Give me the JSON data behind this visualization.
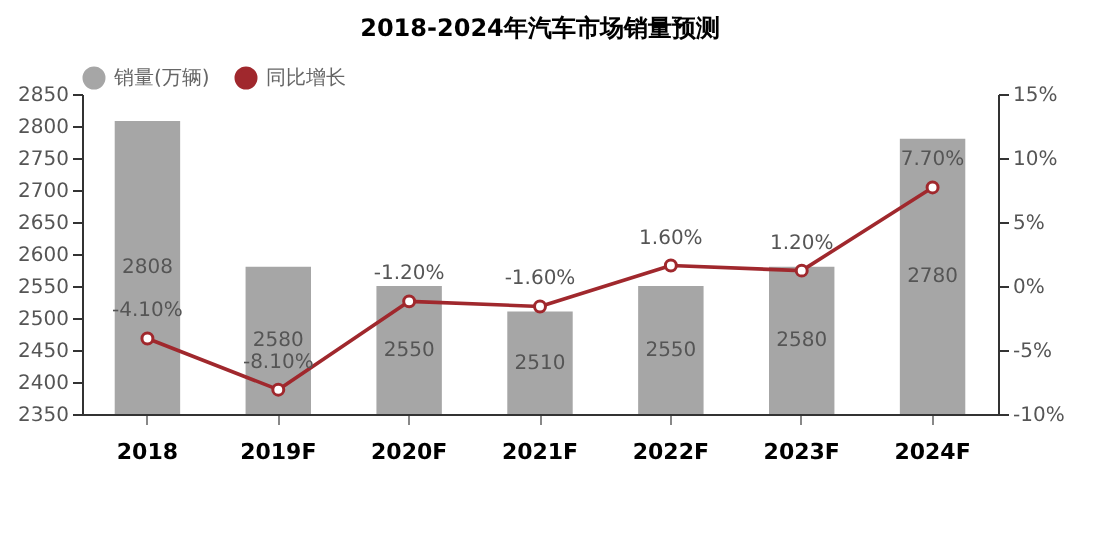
{
  "chart_data": {
    "type": "bar",
    "title": "2018-2024年汽车市场销量预测",
    "categories": [
      "2018",
      "2019F",
      "2020F",
      "2021F",
      "2022F",
      "2023F",
      "2024F"
    ],
    "series": [
      {
        "name": "销量(万辆)",
        "color": "#a6a6a6",
        "values": [
          2808,
          2580,
          2550,
          2510,
          2550,
          2580,
          2780
        ],
        "value_labels": [
          "2808",
          "2580",
          "2550",
          "2510",
          "2550",
          "2580",
          "2780"
        ]
      },
      {
        "name": "同比增长",
        "type": "line",
        "axis": "y2",
        "color": "#a0282d",
        "values": [
          -4.1,
          -8.1,
          -1.2,
          -1.6,
          1.6,
          1.2,
          7.7
        ],
        "value_labels": [
          "-4.10%",
          "-8.10%",
          "-1.20%",
          "-1.60%",
          "1.60%",
          "1.20%",
          "7.70%"
        ]
      }
    ],
    "ylim": [
      2350,
      2850
    ],
    "yticks": [
      2350,
      2400,
      2450,
      2500,
      2550,
      2600,
      2650,
      2700,
      2750,
      2800,
      2850
    ],
    "y2lim": [
      -10,
      15
    ],
    "y2ticks": [
      {
        "value": -10,
        "label": "-10%"
      },
      {
        "value": -5,
        "label": "-5%"
      },
      {
        "value": 0,
        "label": "0%"
      },
      {
        "value": 5,
        "label": "5%"
      },
      {
        "value": 10,
        "label": "10%"
      },
      {
        "value": 15,
        "label": "15%"
      }
    ],
    "grid": false,
    "legend": "top",
    "marker": "circle",
    "line_style": "solid"
  }
}
